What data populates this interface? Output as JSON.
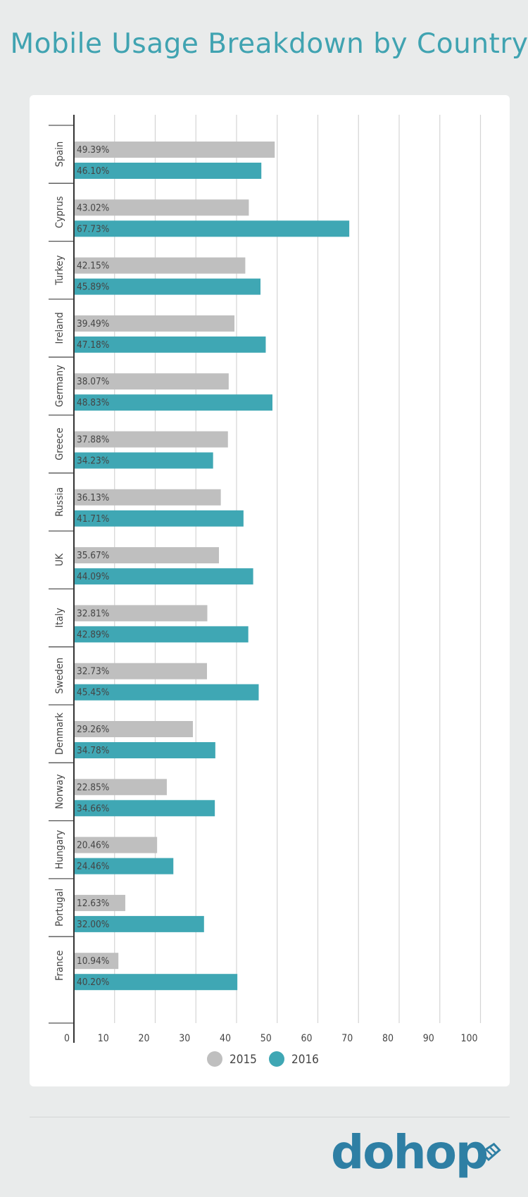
{
  "title": "Mobile Usage Breakdown by Country",
  "colors": {
    "2015": "#bfbfbf",
    "2016": "#3fa7b4",
    "title": "#40a3b1",
    "logo": "#2e7fa4"
  },
  "logo": {
    "text": "dohop"
  },
  "chart_data": {
    "type": "bar",
    "orientation": "horizontal",
    "title": "Mobile Usage Breakdown by Country",
    "categories": [
      "Spain",
      "Cyprus",
      "Turkey",
      "Ireland",
      "Germany",
      "Greece",
      "Russia",
      "UK",
      "Italy",
      "Sweden",
      "Denmark",
      "Norway",
      "Hungary",
      "Portugal",
      "France"
    ],
    "series": [
      {
        "name": "2015",
        "color": "#bfbfbf",
        "values": [
          49.39,
          43.02,
          42.15,
          39.49,
          38.07,
          37.88,
          36.13,
          35.67,
          32.81,
          32.73,
          29.26,
          22.85,
          20.46,
          12.63,
          10.94
        ],
        "labels": [
          "49.39%",
          "43.02%",
          "42.15%",
          "39.49%",
          "38.07%",
          "37.88%",
          "36.13%",
          "35.67%",
          "32.81%",
          "32.73%",
          "29.26%",
          "22.85%",
          "20.46%",
          "12.63%",
          "10.94%"
        ]
      },
      {
        "name": "2016",
        "color": "#3fa7b4",
        "values": [
          46.1,
          67.73,
          45.89,
          47.18,
          48.83,
          34.23,
          41.71,
          44.09,
          42.89,
          45.45,
          34.78,
          34.66,
          24.46,
          32.0,
          40.2
        ],
        "labels": [
          "46.10%",
          "67.73%",
          "45.89%",
          "47.18%",
          "48.83%",
          "34.23%",
          "41.71%",
          "44.09%",
          "42.89%",
          "45.45%",
          "34.78%",
          "34.66%",
          "24.46%",
          "32.00%",
          "40.20%"
        ]
      }
    ],
    "xlim": [
      0,
      100
    ],
    "xticks": [
      "0",
      "10",
      "20",
      "30",
      "40",
      "50",
      "60",
      "70",
      "80",
      "90",
      "100"
    ],
    "grid": true,
    "legend": "bottom-center"
  }
}
